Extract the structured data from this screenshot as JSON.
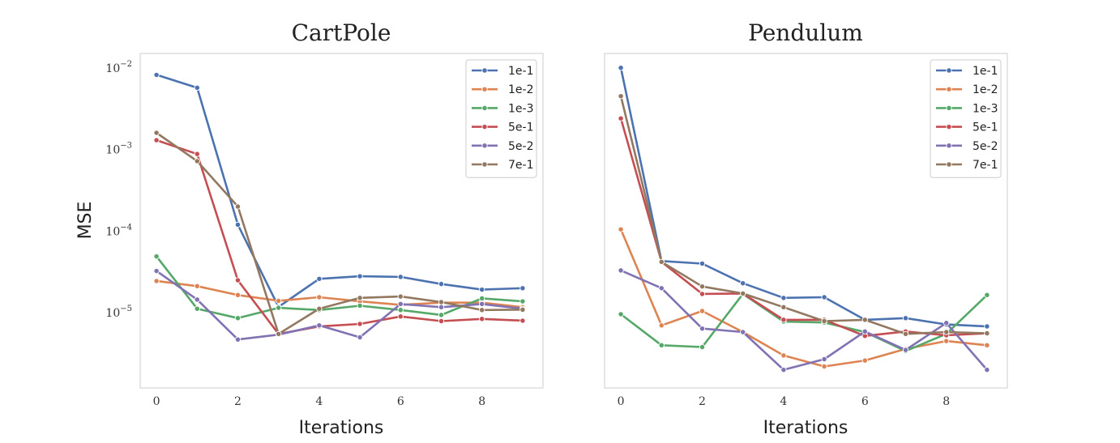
{
  "chart_data": [
    {
      "type": "line",
      "title": "CartPole",
      "xlabel": "Iterations",
      "ylabel": "MSE",
      "yscale": "log",
      "x": [
        0,
        1,
        2,
        3,
        4,
        5,
        6,
        7,
        8,
        9
      ],
      "xticks": [
        0,
        2,
        4,
        6,
        8
      ],
      "yticks": [
        1e-05,
        0.0001,
        0.001,
        0.01
      ],
      "ytick_labels": [
        {
          "base": "10",
          "exp": "−5"
        },
        {
          "base": "10",
          "exp": "−4"
        },
        {
          "base": "10",
          "exp": "−3"
        },
        {
          "base": "10",
          "exp": "−2"
        }
      ],
      "xlim": [
        -0.4,
        9.5
      ],
      "ylim": [
        1.2e-06,
        0.015
      ],
      "grid": false,
      "legend_position": "top-right",
      "series": [
        {
          "name": "1e-1",
          "color": "#4c72b0",
          "values": [
            0.0082,
            0.0057,
            0.00012,
            1.18e-05,
            2.6e-05,
            2.8e-05,
            2.75e-05,
            2.25e-05,
            1.92e-05,
            2e-05
          ]
        },
        {
          "name": "1e-2",
          "color": "#dd8452",
          "values": [
            2.45e-05,
            2.12e-05,
            1.65e-05,
            1.4e-05,
            1.55e-05,
            1.38e-05,
            1.25e-05,
            1.33e-05,
            1.33e-05,
            1.17e-05
          ]
        },
        {
          "name": "1e-3",
          "color": "#55a868",
          "values": [
            4.9e-05,
            1.12e-05,
            8.6e-06,
            1.15e-05,
            1.08e-05,
            1.22e-05,
            1.08e-05,
            9.4e-06,
            1.5e-05,
            1.38e-05
          ]
        },
        {
          "name": "5e-1",
          "color": "#c44e52",
          "values": [
            0.0013,
            0.00088,
            2.5e-05,
            5.5e-06,
            6.8e-06,
            7.3e-06,
            9e-06,
            7.9e-06,
            8.4e-06,
            8e-06
          ]
        },
        {
          "name": "5e-2",
          "color": "#8172b3",
          "values": [
            3.25e-05,
            1.45e-05,
            4.7e-06,
            5.4e-06,
            7e-06,
            5e-06,
            1.28e-05,
            1.17e-05,
            1.28e-05,
            1.12e-05
          ]
        },
        {
          "name": "7e-1",
          "color": "#937860",
          "values": [
            0.0016,
            0.00072,
            0.0002,
            5.5e-06,
            1.12e-05,
            1.52e-05,
            1.58e-05,
            1.35e-05,
            1.08e-05,
            1.09e-05
          ]
        }
      ]
    },
    {
      "type": "line",
      "title": "Pendulum",
      "xlabel": "Iterations",
      "ylabel": "",
      "yscale": "log",
      "x": [
        0,
        1,
        2,
        3,
        4,
        5,
        6,
        7,
        8,
        9
      ],
      "xticks": [
        0,
        2,
        4,
        6,
        8
      ],
      "yticks": [],
      "ytick_labels": [],
      "xlim": [
        -0.4,
        9.5
      ],
      "ylim": [
        1.2e-06,
        0.015
      ],
      "grid": false,
      "legend_position": "top-right",
      "series": [
        {
          "name": "1e-1",
          "color": "#4c72b0",
          "values": [
            0.01,
            4.3e-05,
            4e-05,
            2.3e-05,
            1.52e-05,
            1.55e-05,
            8.2e-06,
            8.6e-06,
            7.2e-06,
            6.8e-06
          ]
        },
        {
          "name": "1e-2",
          "color": "#dd8452",
          "values": [
            0.000105,
            7e-06,
            1.05e-05,
            5.8e-06,
            3e-06,
            2.2e-06,
            2.6e-06,
            3.6e-06,
            4.5e-06,
            4e-06
          ]
        },
        {
          "name": "1e-3",
          "color": "#55a868",
          "values": [
            9.6e-06,
            4e-06,
            3.8e-06,
            1.7e-05,
            7.8e-06,
            7.6e-06,
            5.8e-06,
            3.4e-06,
            5.5e-06,
            1.65e-05
          ]
        },
        {
          "name": "5e-1",
          "color": "#c44e52",
          "values": [
            0.0024,
            4.2e-05,
            1.7e-05,
            1.72e-05,
            8.2e-06,
            8.2e-06,
            5.2e-06,
            5.9e-06,
            5.3e-06,
            5.6e-06
          ]
        },
        {
          "name": "5e-2",
          "color": "#8172b3",
          "values": [
            3.3e-05,
            2e-05,
            6.4e-06,
            5.8e-06,
            2e-06,
            2.7e-06,
            5.9e-06,
            3.5e-06,
            7.5e-06,
            2e-06
          ]
        },
        {
          "name": "7e-1",
          "color": "#937860",
          "values": [
            0.0045,
            4.2e-05,
            2.1e-05,
            1.72e-05,
            1.17e-05,
            7.9e-06,
            8.2e-06,
            5.5e-06,
            5.8e-06,
            5.6e-06
          ]
        }
      ]
    }
  ]
}
